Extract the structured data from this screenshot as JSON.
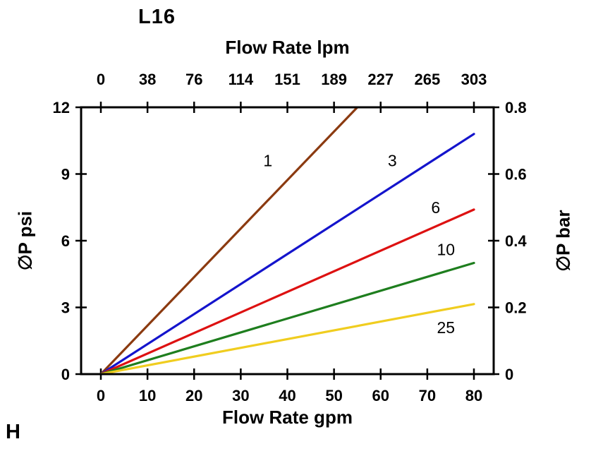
{
  "corner_label": "H",
  "chart_data": {
    "type": "line",
    "title": "L16",
    "top_xlabel": "Flow Rate lpm",
    "top_xticks": [
      "0",
      "38",
      "76",
      "114",
      "151",
      "189",
      "227",
      "265",
      "303"
    ],
    "bottom_xlabel": "Flow Rate gpm",
    "bottom_xticks": [
      "0",
      "10",
      "20",
      "30",
      "40",
      "50",
      "60",
      "70",
      "80"
    ],
    "left_ylabel": "∅P psi",
    "left_yticks": [
      "0",
      "3",
      "6",
      "9",
      "12"
    ],
    "right_ylabel": "∅P bar",
    "right_yticks": [
      "0",
      "0.2",
      "0.4",
      "0.6",
      "0.8"
    ],
    "xlim": [
      0,
      80
    ],
    "ylim": [
      0,
      12
    ],
    "right_ylim": [
      0,
      0.8
    ],
    "grid": false,
    "legend": "inline-labels",
    "axis_color": "#000000",
    "series": [
      {
        "name": "1",
        "color": "#8b3a10",
        "points": [
          [
            0,
            0
          ],
          [
            55,
            12
          ]
        ],
        "label_pos": [
          35.8,
          9.6
        ]
      },
      {
        "name": "3",
        "color": "#1414cc",
        "points": [
          [
            0,
            0
          ],
          [
            80,
            10.8
          ]
        ],
        "label_pos": [
          62.5,
          9.6
        ]
      },
      {
        "name": "6",
        "color": "#dd1111",
        "points": [
          [
            0,
            0
          ],
          [
            80,
            7.4
          ]
        ],
        "label_pos": [
          71.8,
          7.5
        ]
      },
      {
        "name": "10",
        "color": "#1e7e1e",
        "points": [
          [
            0,
            0
          ],
          [
            80,
            5.0
          ]
        ],
        "label_pos": [
          74.0,
          5.6
        ]
      },
      {
        "name": "25",
        "color": "#f0cd1f",
        "points": [
          [
            0,
            0
          ],
          [
            80,
            3.15
          ]
        ],
        "label_pos": [
          74.0,
          2.1
        ]
      }
    ]
  }
}
